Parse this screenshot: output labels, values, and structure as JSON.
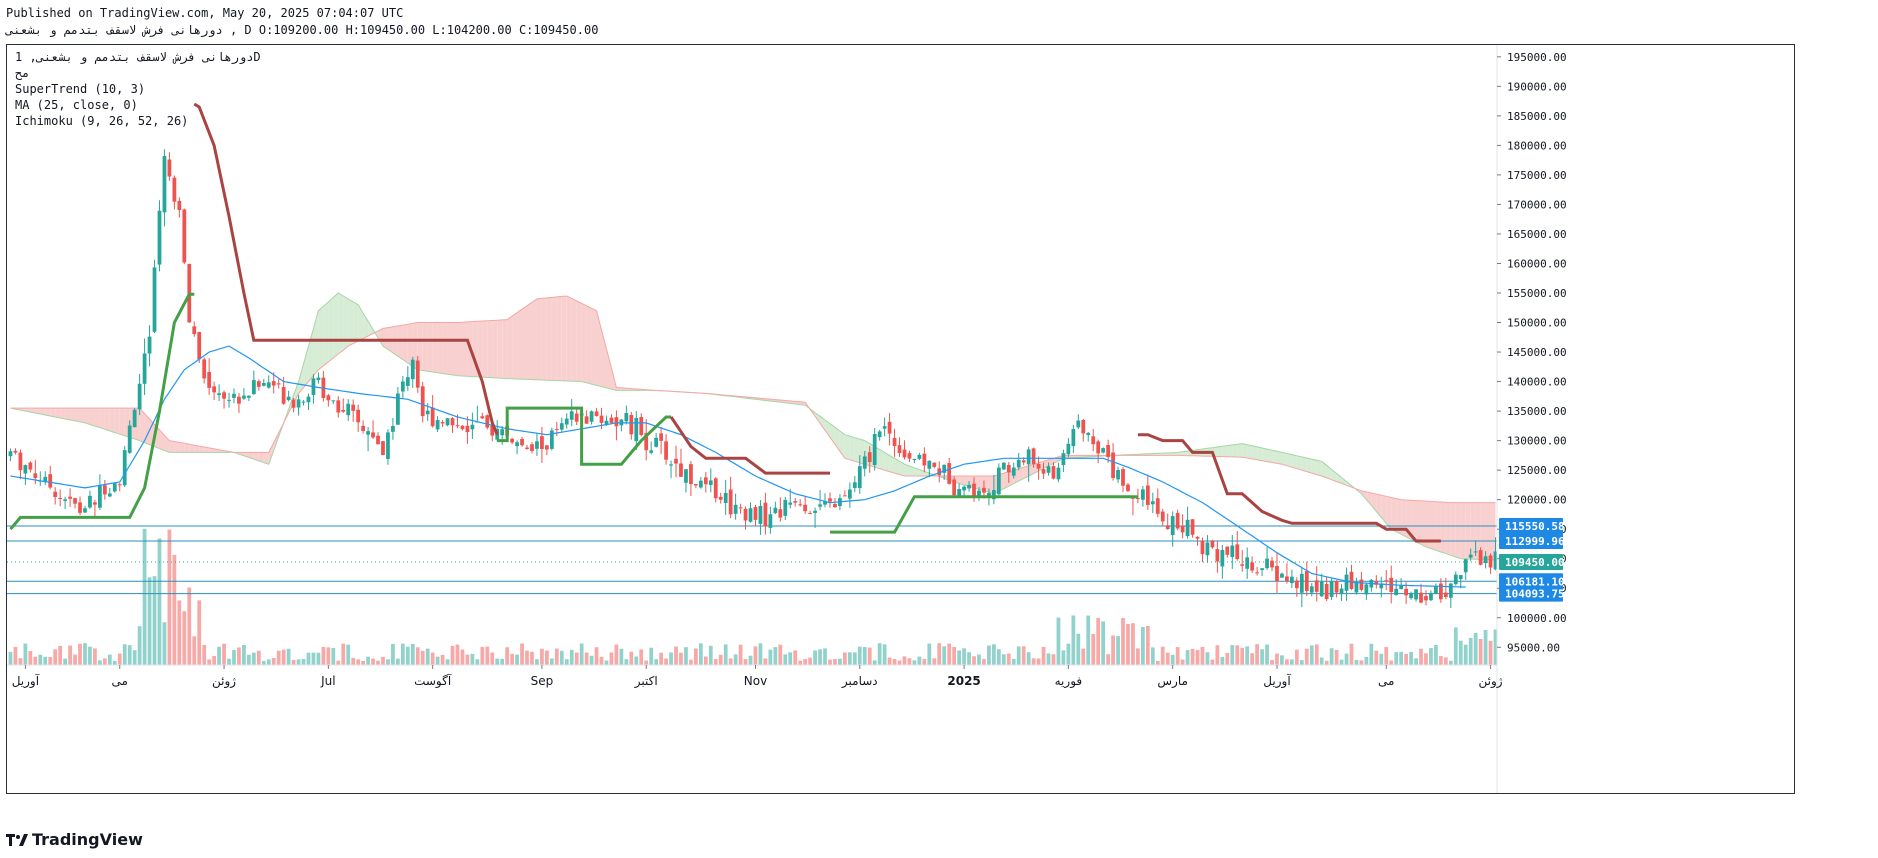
{
  "header": {
    "published": "Published on TradingView.com, May 20, 2025 07:04:07 UTC",
    "ohlc_line": "دورهانی فرش لاسقف بتدمم و بشعنی , D O:109200.00 H:109450.00 L:104200.00 C:109450.00"
  },
  "legend": {
    "symbol": "دورهانی فرش لاسقف بتدمم و بشعنی, 1D",
    "exchange": "مح",
    "supertrend": "SuperTrend (10, 3)",
    "ma": "MA (25, close, 0)",
    "ichimoku": "Ichimoku (9, 26, 52, 26)"
  },
  "brand": {
    "name": "TradingView",
    "logo_icon": "tradingview-logo-icon"
  },
  "colors": {
    "up": "#26a69a",
    "down": "#ef5350",
    "supertrend_up": "#43a047",
    "supertrend_down": "#a94442",
    "ma": "#2196f3",
    "cloud_bear": "#f8d0cf",
    "cloud_bull": "#d7ecd5",
    "hline": "#2a8fc0",
    "badge_green": "#26a69a",
    "badge_blue": "#1e88e5"
  },
  "chart_data": {
    "type": "candlestick",
    "y_axis": {
      "range": [
        92000,
        197000
      ],
      "ticks": [
        "195000.00",
        "190000.00",
        "185000.00",
        "180000.00",
        "175000.00",
        "170000.00",
        "165000.00",
        "160000.00",
        "155000.00",
        "150000.00",
        "145000.00",
        "140000.00",
        "135000.00",
        "130000.00",
        "125000.00",
        "120000.00",
        "115000.00",
        "110000.00",
        "105000.00",
        "100000.00",
        "95000.00"
      ],
      "tick_values": [
        195000,
        190000,
        185000,
        180000,
        175000,
        170000,
        165000,
        160000,
        155000,
        150000,
        145000,
        140000,
        135000,
        130000,
        125000,
        120000,
        115000,
        110000,
        105000,
        100000,
        95000
      ]
    },
    "x_axis": {
      "labels": [
        "آوریل",
        "می",
        "ژوئن",
        "Jul",
        "آگوست",
        "Sep",
        "اکتبر",
        "Nov",
        "دسامبر",
        "2025",
        "فوریه",
        "مارس",
        "آوریل",
        "می",
        "ژوئن"
      ],
      "label_bars": [
        3,
        22,
        43,
        64,
        85,
        107,
        128,
        150,
        171,
        192,
        213,
        234,
        255,
        277,
        298
      ],
      "bold_labels": [
        "2025"
      ]
    },
    "bars_total": 300,
    "candles_summary": "daily OHLC candles from ~Apr 2024 to May 20 2025",
    "price_levels": [
      {
        "label": "115550.58",
        "value": 115550.58,
        "style": "blue"
      },
      {
        "label": "112999.96",
        "value": 112999.96,
        "style": "blue"
      },
      {
        "label": "109450.00",
        "value": 109450.0,
        "style": "green"
      },
      {
        "label": "106181.10",
        "value": 106181.1,
        "style": "blue"
      },
      {
        "label": "104093.75",
        "value": 104093.75,
        "style": "blue"
      }
    ],
    "last_close": 109450.0,
    "keyframes_close": [
      [
        0,
        128000
      ],
      [
        10,
        121000
      ],
      [
        14,
        118000
      ],
      [
        22,
        124000
      ],
      [
        28,
        148000
      ],
      [
        31,
        180000
      ],
      [
        34,
        168000
      ],
      [
        36,
        150000
      ],
      [
        39,
        140000
      ],
      [
        45,
        137000
      ],
      [
        52,
        140000
      ],
      [
        58,
        137000
      ],
      [
        62,
        140000
      ],
      [
        66,
        136000
      ],
      [
        71,
        132000
      ],
      [
        75,
        128000
      ],
      [
        79,
        140000
      ],
      [
        81,
        144000
      ],
      [
        83,
        134500
      ],
      [
        90,
        133000
      ],
      [
        95,
        132000
      ],
      [
        100,
        131000
      ],
      [
        104,
        128000
      ],
      [
        108,
        130000
      ],
      [
        112,
        133000
      ],
      [
        118,
        134000
      ],
      [
        124,
        133000
      ],
      [
        130,
        129000
      ],
      [
        135,
        125000
      ],
      [
        140,
        122000
      ],
      [
        146,
        119000
      ],
      [
        152,
        117000
      ],
      [
        158,
        120000
      ],
      [
        162,
        118000
      ],
      [
        168,
        120000
      ],
      [
        172,
        126000
      ],
      [
        175,
        133000
      ],
      [
        180,
        128000
      ],
      [
        185,
        126000
      ],
      [
        190,
        123000
      ],
      [
        195,
        121000
      ],
      [
        200,
        125000
      ],
      [
        205,
        127000
      ],
      [
        210,
        124000
      ],
      [
        215,
        133000
      ],
      [
        218,
        131000
      ],
      [
        222,
        126000
      ],
      [
        226,
        121000
      ],
      [
        230,
        118000
      ],
      [
        236,
        115000
      ],
      [
        242,
        112000
      ],
      [
        250,
        109000
      ],
      [
        256,
        107000
      ],
      [
        262,
        105000
      ],
      [
        270,
        105500
      ],
      [
        275,
        106000
      ],
      [
        280,
        104500
      ],
      [
        285,
        104000
      ],
      [
        290,
        105500
      ],
      [
        293,
        109450
      ]
    ],
    "keyframes_ma": [
      [
        0,
        124000
      ],
      [
        15,
        122000
      ],
      [
        22,
        123000
      ],
      [
        27,
        130000
      ],
      [
        31,
        137000
      ],
      [
        35,
        142000
      ],
      [
        40,
        145000
      ],
      [
        44,
        146000
      ],
      [
        48,
        144000
      ],
      [
        55,
        140000
      ],
      [
        62,
        139000
      ],
      [
        70,
        138000
      ],
      [
        80,
        137000
      ],
      [
        90,
        134000
      ],
      [
        100,
        132000
      ],
      [
        108,
        131000
      ],
      [
        115,
        132000
      ],
      [
        122,
        133000
      ],
      [
        128,
        133000
      ],
      [
        135,
        131000
      ],
      [
        142,
        128000
      ],
      [
        150,
        124000
      ],
      [
        158,
        121000
      ],
      [
        165,
        119500
      ],
      [
        172,
        120000
      ],
      [
        178,
        121500
      ],
      [
        185,
        124000
      ],
      [
        192,
        126000
      ],
      [
        200,
        127000
      ],
      [
        210,
        127000
      ],
      [
        220,
        127000
      ],
      [
        225,
        125500
      ],
      [
        232,
        123000
      ],
      [
        240,
        119500
      ],
      [
        248,
        115000
      ],
      [
        255,
        111000
      ],
      [
        262,
        107500
      ],
      [
        270,
        106000
      ],
      [
        280,
        105500
      ],
      [
        293,
        105200
      ]
    ],
    "supertrend": {
      "segments": [
        {
          "dir": "up",
          "points": [
            [
              0,
              115000
            ],
            [
              2,
              117000
            ],
            [
              12,
              117000
            ],
            [
              24,
              117000
            ],
            [
              27,
              122000
            ],
            [
              30,
              135000
            ],
            [
              33,
              150000
            ],
            [
              36,
              154800
            ],
            [
              37,
              154800
            ]
          ]
        },
        {
          "dir": "down",
          "points": [
            [
              37,
              187000
            ],
            [
              38,
              186500
            ],
            [
              41,
              180000
            ],
            [
              44,
              168000
            ],
            [
              47,
              155000
            ],
            [
              49,
              147000
            ],
            [
              70,
              147000
            ],
            [
              92,
              147000
            ],
            [
              95,
              140000
            ],
            [
              97,
              133000
            ],
            [
              98,
              131000
            ]
          ]
        },
        {
          "dir": "up",
          "points": [
            [
              98,
              130000
            ],
            [
              100,
              130000
            ],
            [
              100,
              135500
            ],
            [
              115,
              135500
            ],
            [
              115,
              126000
            ],
            [
              123,
              126000
            ],
            [
              127,
              130000
            ],
            [
              132,
              134000
            ],
            [
              133,
              134000
            ]
          ]
        },
        {
          "dir": "down",
          "points": [
            [
              133,
              134000
            ],
            [
              137,
              129000
            ],
            [
              140,
              127000
            ],
            [
              148,
              127000
            ],
            [
              152,
              124500
            ],
            [
              158,
              124500
            ],
            [
              165,
              124500
            ]
          ]
        },
        {
          "dir": "up",
          "points": [
            [
              165,
              114500
            ],
            [
              178,
              114500
            ],
            [
              182,
              120500
            ],
            [
              225,
              120500
            ],
            [
              227,
              120500
            ]
          ]
        },
        {
          "dir": "down",
          "points": [
            [
              227,
              131000
            ],
            [
              229,
              131000
            ],
            [
              232,
              130000
            ],
            [
              236,
              130000
            ],
            [
              238,
              128000
            ],
            [
              242,
              128000
            ],
            [
              245,
              121000
            ],
            [
              248,
              121000
            ],
            [
              252,
              118000
            ],
            [
              256,
              116500
            ],
            [
              258,
              116000
            ],
            [
              275,
              116000
            ],
            [
              277,
              115000
            ],
            [
              281,
              115000
            ],
            [
              283,
              113000
            ],
            [
              288,
              113000
            ]
          ]
        }
      ]
    },
    "ichimoku_cloud": {
      "span_a": [
        [
          0,
          135500
        ],
        [
          15,
          133000
        ],
        [
          26,
          130000
        ],
        [
          32,
          128000
        ],
        [
          45,
          128000
        ],
        [
          52,
          126000
        ],
        [
          58,
          140000
        ],
        [
          62,
          152000
        ],
        [
          66,
          155000
        ],
        [
          70,
          153000
        ],
        [
          75,
          146000
        ],
        [
          82,
          142000
        ],
        [
          90,
          141000
        ],
        [
          100,
          140500
        ],
        [
          115,
          140000
        ],
        [
          122,
          138500
        ],
        [
          130,
          138500
        ],
        [
          140,
          138000
        ],
        [
          160,
          136000
        ],
        [
          168,
          131000
        ],
        [
          172,
          130000
        ],
        [
          180,
          126000
        ],
        [
          190,
          123000
        ],
        [
          198,
          121000
        ],
        [
          212,
          127000
        ],
        [
          222,
          127500
        ],
        [
          235,
          128000
        ],
        [
          248,
          129500
        ],
        [
          256,
          128000
        ],
        [
          264,
          126500
        ],
        [
          272,
          121000
        ],
        [
          278,
          115000
        ],
        [
          285,
          112000
        ],
        [
          292,
          110000
        ],
        [
          298,
          109800
        ]
      ],
      "span_b": [
        [
          0,
          135500
        ],
        [
          15,
          135500
        ],
        [
          26,
          135500
        ],
        [
          32,
          130000
        ],
        [
          45,
          128000
        ],
        [
          52,
          128000
        ],
        [
          58,
          138000
        ],
        [
          62,
          142000
        ],
        [
          68,
          146000
        ],
        [
          75,
          149000
        ],
        [
          82,
          150000
        ],
        [
          90,
          150000
        ],
        [
          100,
          150500
        ],
        [
          106,
          154000
        ],
        [
          112,
          154500
        ],
        [
          118,
          152000
        ],
        [
          122,
          139000
        ],
        [
          130,
          138500
        ],
        [
          140,
          138000
        ],
        [
          160,
          136500
        ],
        [
          168,
          127000
        ],
        [
          172,
          126000
        ],
        [
          180,
          124000
        ],
        [
          190,
          124000
        ],
        [
          198,
          124000
        ],
        [
          212,
          127500
        ],
        [
          222,
          127500
        ],
        [
          235,
          127500
        ],
        [
          248,
          127200
        ],
        [
          256,
          126000
        ],
        [
          264,
          124000
        ],
        [
          272,
          121500
        ],
        [
          280,
          120000
        ],
        [
          290,
          119500
        ],
        [
          298,
          119500
        ]
      ]
    },
    "volume_scale_max": 28
  }
}
